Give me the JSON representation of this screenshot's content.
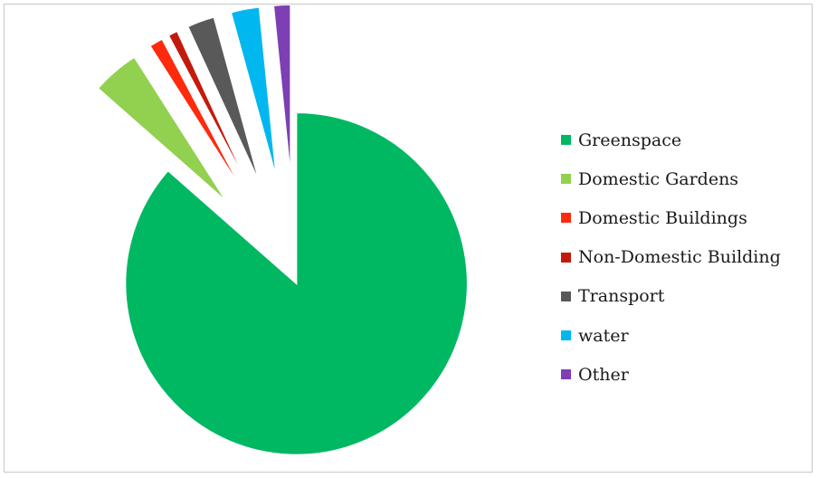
{
  "chart_data": {
    "type": "pie",
    "exploded": true,
    "legend_position": "right",
    "categories": [
      "Greenspace",
      "Domestic Gardens",
      "Domestic Buildings",
      "Non-Domestic Building",
      "Transport",
      "water",
      "Other"
    ],
    "values": [
      87,
      4.5,
      1.3,
      0.9,
      2.6,
      2.7,
      1.6
    ],
    "colors": [
      "#00b862",
      "#92d050",
      "#ff2a0e",
      "#c41a0c",
      "#595959",
      "#00b7f0",
      "#7d3fb3"
    ]
  }
}
